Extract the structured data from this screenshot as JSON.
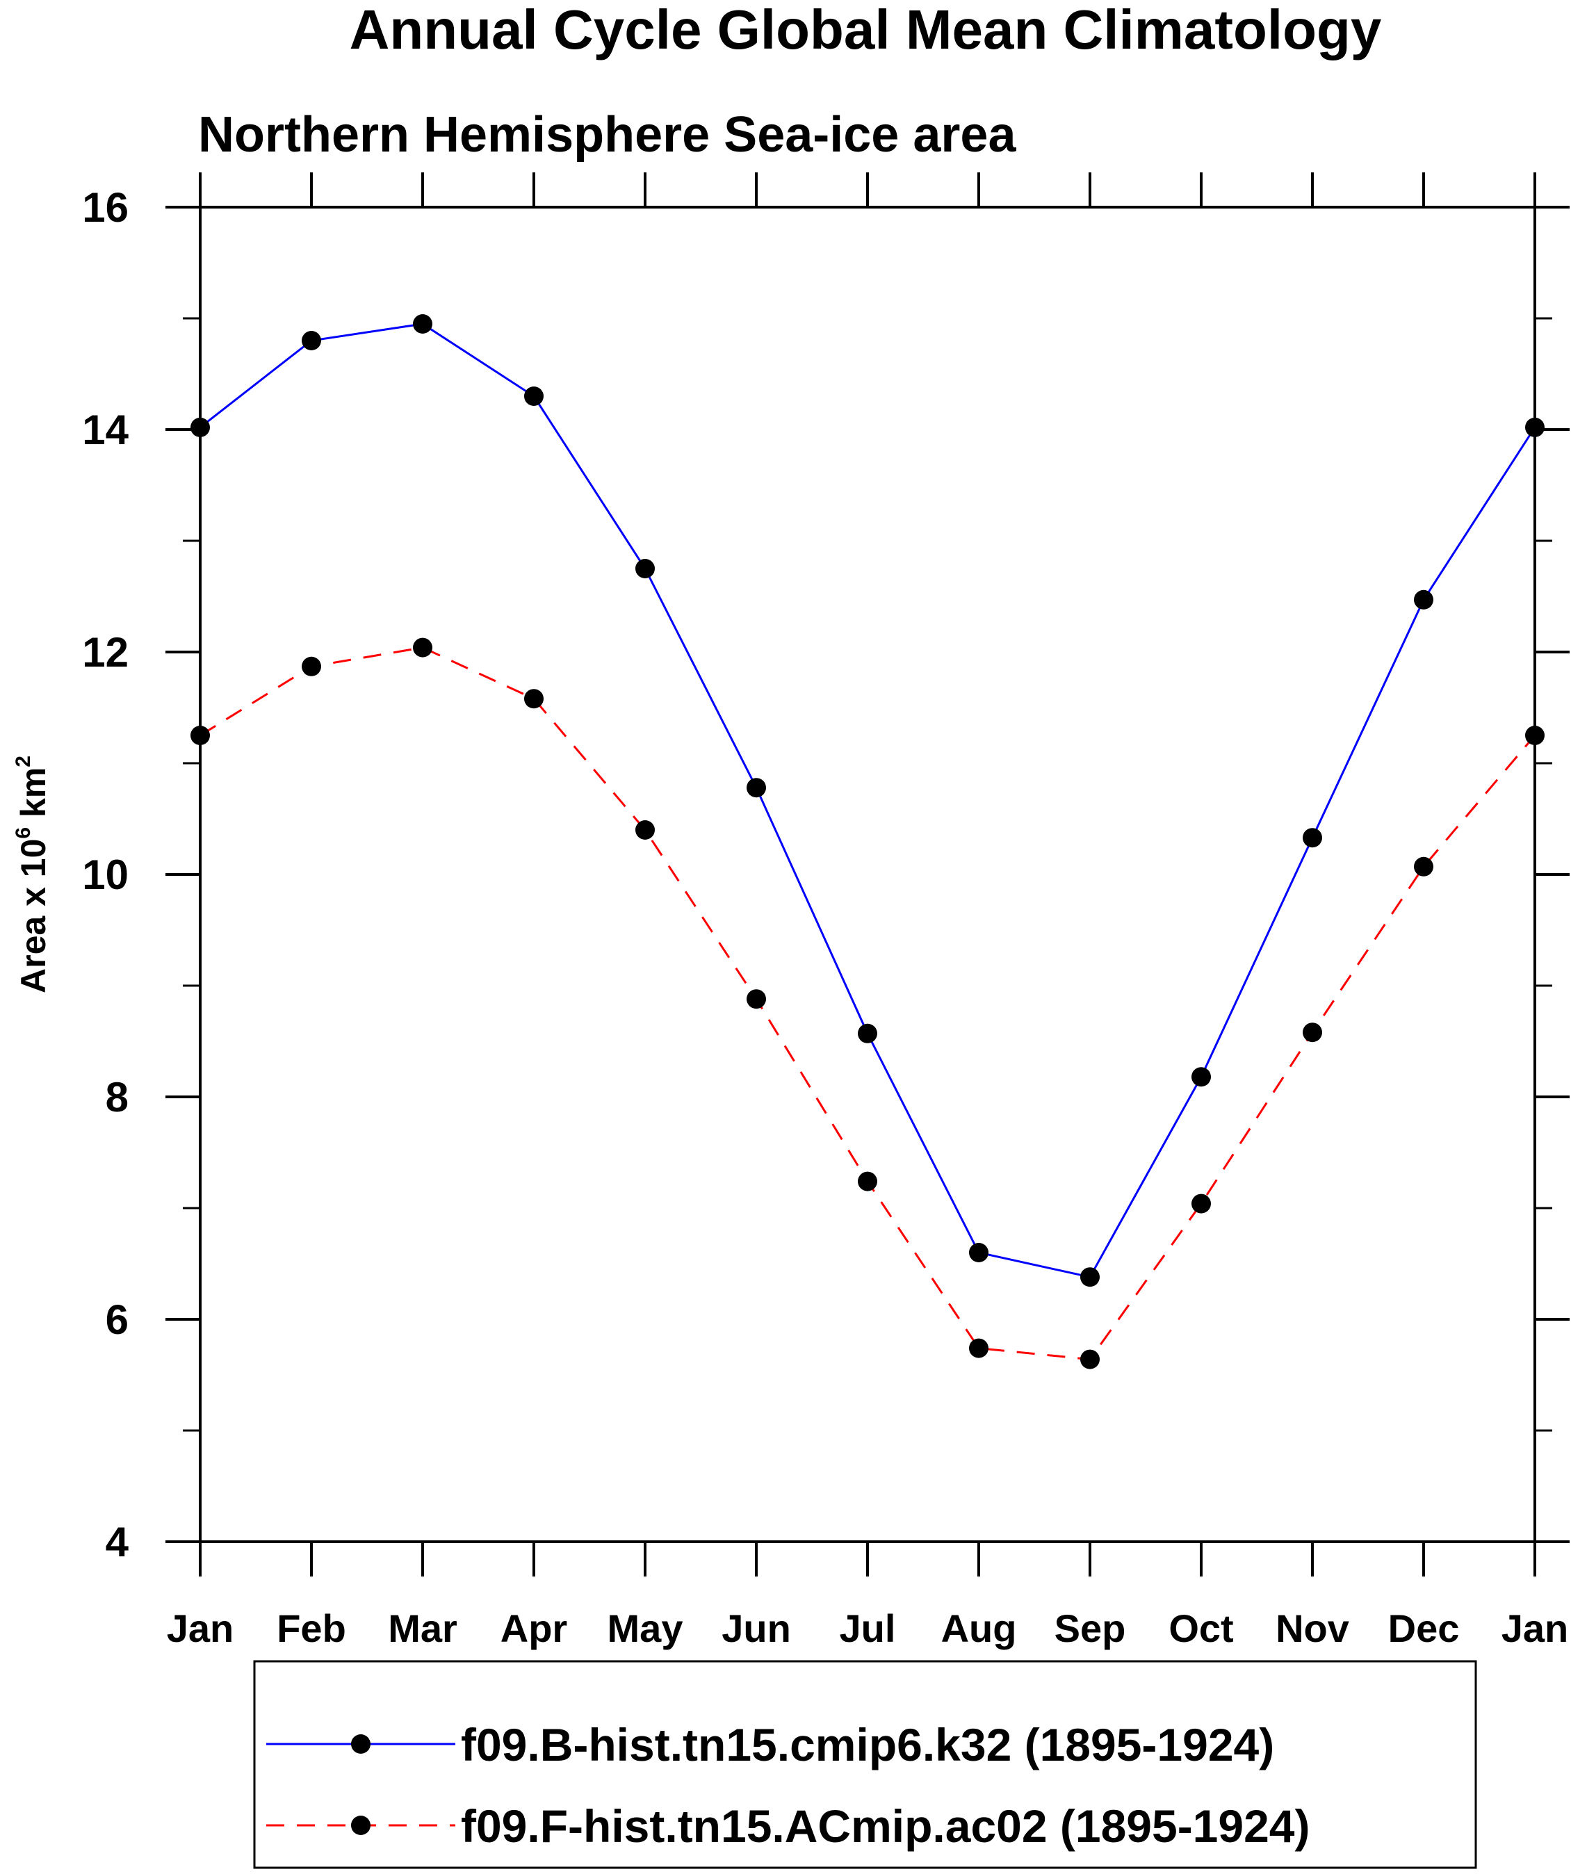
{
  "chart_data": {
    "type": "line",
    "title": "Annual Cycle Global Mean Climatology",
    "subtitle": "Northern Hemisphere Sea-ice area",
    "ylabel": {
      "prefix": "Area x 10",
      "exp1": "6",
      "middle": " km",
      "exp2": "2"
    },
    "xlabel": "",
    "categories": [
      "Jan",
      "Feb",
      "Mar",
      "Apr",
      "May",
      "Jun",
      "Jul",
      "Aug",
      "Sep",
      "Oct",
      "Nov",
      "Dec",
      "Jan"
    ],
    "ylim": [
      4,
      16
    ],
    "yticks": [
      "4",
      "6",
      "8",
      "10",
      "12",
      "14",
      "16"
    ],
    "y_minor_step": 1,
    "series": [
      {
        "name": "f09.B-hist.tn15.cmip6.k32 (1895-1924)",
        "color": "#0000ff",
        "line_style": "solid",
        "marker_color": "#000000",
        "values": [
          14.02,
          14.8,
          14.95,
          14.3,
          12.75,
          10.78,
          8.57,
          6.6,
          6.38,
          8.18,
          10.33,
          12.47,
          14.02
        ]
      },
      {
        "name": "f09.F-hist.tn15.ACmip.ac02 (1895-1924)",
        "color": "#ff0000",
        "line_style": "dashed",
        "marker_color": "#000000",
        "values": [
          11.25,
          11.87,
          12.04,
          11.58,
          10.4,
          8.88,
          7.24,
          5.74,
          5.64,
          7.04,
          8.58,
          10.07,
          11.25
        ]
      }
    ],
    "legend_position": "bottom"
  }
}
